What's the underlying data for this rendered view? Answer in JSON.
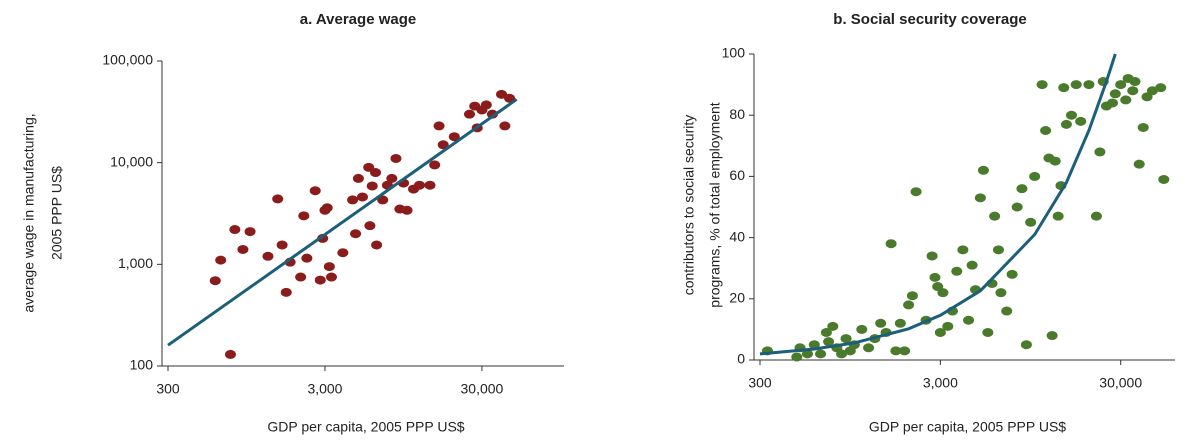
{
  "chart_data": [
    {
      "type": "scatter",
      "title": "a.  Average wage",
      "xlabel": "GDP per capita, 2005 PPP US$",
      "ylabel": [
        "average wage in manufacturing,",
        "2005 PPP US$"
      ],
      "xscale": "log",
      "yscale": "log",
      "xlim": [
        300,
        100000
      ],
      "ylim": [
        100,
        100000
      ],
      "xticks": [
        300,
        {
          "value": 3000,
          "label": "3,000"
        },
        {
          "value": 30000,
          "label": "30,000"
        }
      ],
      "yticks": [
        100,
        {
          "value": 1000,
          "label": "1,000"
        },
        {
          "value": 10000,
          "label": "10,000"
        },
        {
          "value": 100000,
          "label": "100,000"
        }
      ],
      "color": "#8b1c1c",
      "line_color": "#1b5f7a",
      "x": [
        600,
        650,
        750,
        800,
        900,
        1000,
        1300,
        1500,
        1600,
        1700,
        1800,
        2100,
        2200,
        2300,
        2600,
        2800,
        2900,
        3000,
        3100,
        3200,
        3300,
        3900,
        4500,
        4700,
        4900,
        5200,
        5700,
        5800,
        6000,
        6300,
        6400,
        7000,
        7500,
        8000,
        8500,
        9000,
        9500,
        10000,
        11000,
        12000,
        14000,
        15000,
        16000,
        17000,
        20000,
        25000,
        27000,
        28000,
        30000,
        32000,
        35000,
        40000,
        42000,
        45000
      ],
      "y": [
        690,
        1100,
        130,
        2200,
        1400,
        2100,
        1200,
        4400,
        1550,
        530,
        1050,
        750,
        3000,
        1150,
        5300,
        700,
        1800,
        3400,
        3600,
        950,
        750,
        1300,
        4300,
        2000,
        7000,
        4600,
        9000,
        2400,
        5900,
        8000,
        1550,
        4300,
        6000,
        7000,
        11000,
        3500,
        6300,
        3400,
        5500,
        6000,
        6000,
        9500,
        23000,
        15000,
        18000,
        30000,
        36000,
        22000,
        33000,
        37000,
        30000,
        47000,
        23000,
        43000
      ],
      "fit": {
        "x": [
          300,
          50000
        ],
        "y": [
          160,
          42000
        ]
      }
    },
    {
      "type": "scatter",
      "title": "b.  Social security coverage",
      "xlabel": "GDP per capita, 2005 PPP US$",
      "ylabel": [
        "contributors to social security",
        "programs, % of total employment"
      ],
      "xscale": "log",
      "xlim": [
        300,
        60000
      ],
      "ylim": [
        0,
        100
      ],
      "xticks": [
        300,
        {
          "value": 3000,
          "label": "3,000"
        },
        {
          "value": 30000,
          "label": "30,000"
        }
      ],
      "yticks": [
        0,
        20,
        40,
        60,
        80,
        100
      ],
      "color": "#4a7a2c",
      "line_color": "#1b5f7a",
      "x": [
        330,
        480,
        500,
        550,
        600,
        650,
        700,
        720,
        760,
        800,
        850,
        900,
        950,
        1000,
        1100,
        1200,
        1300,
        1400,
        1500,
        1600,
        1700,
        1800,
        1900,
        2000,
        2100,
        2200,
        2500,
        2700,
        2800,
        2900,
        3000,
        3100,
        3300,
        3500,
        3700,
        4000,
        4300,
        4500,
        4700,
        5000,
        5200,
        5500,
        5800,
        6000,
        6300,
        6500,
        7000,
        7500,
        8000,
        8500,
        9000,
        9500,
        10000,
        11000,
        11500,
        12000,
        12500,
        13000,
        13500,
        14000,
        14500,
        15000,
        16000,
        17000,
        18000,
        20000,
        22000,
        23000,
        24000,
        25000,
        27000,
        28000,
        30000,
        32000,
        33000,
        35000,
        36000,
        38000,
        40000,
        42000,
        45000,
        50000,
        52000
      ],
      "y": [
        3,
        1,
        4,
        2,
        5,
        2,
        9,
        6,
        11,
        4,
        2,
        7,
        3,
        5,
        10,
        4,
        7,
        12,
        9,
        38,
        3,
        12,
        3,
        18,
        21,
        55,
        13,
        34,
        27,
        24,
        9,
        22,
        11,
        16,
        29,
        36,
        13,
        31,
        23,
        53,
        62,
        9,
        25,
        47,
        36,
        22,
        16,
        28,
        50,
        56,
        5,
        45,
        60,
        90,
        75,
        66,
        8,
        65,
        47,
        57,
        89,
        77,
        80,
        90,
        78,
        90,
        47,
        68,
        91,
        83,
        84,
        87,
        90,
        85,
        92,
        88,
        91,
        64,
        76,
        86,
        88,
        89,
        59
      ],
      "fit": {
        "x": [
          300,
          600,
          1000,
          2000,
          3000,
          5000,
          10000,
          15000,
          20000,
          25000,
          28000
        ],
        "y": [
          2,
          3.6,
          5.6,
          10.2,
          14.6,
          22.6,
          41,
          58,
          75,
          91,
          100
        ]
      }
    }
  ]
}
